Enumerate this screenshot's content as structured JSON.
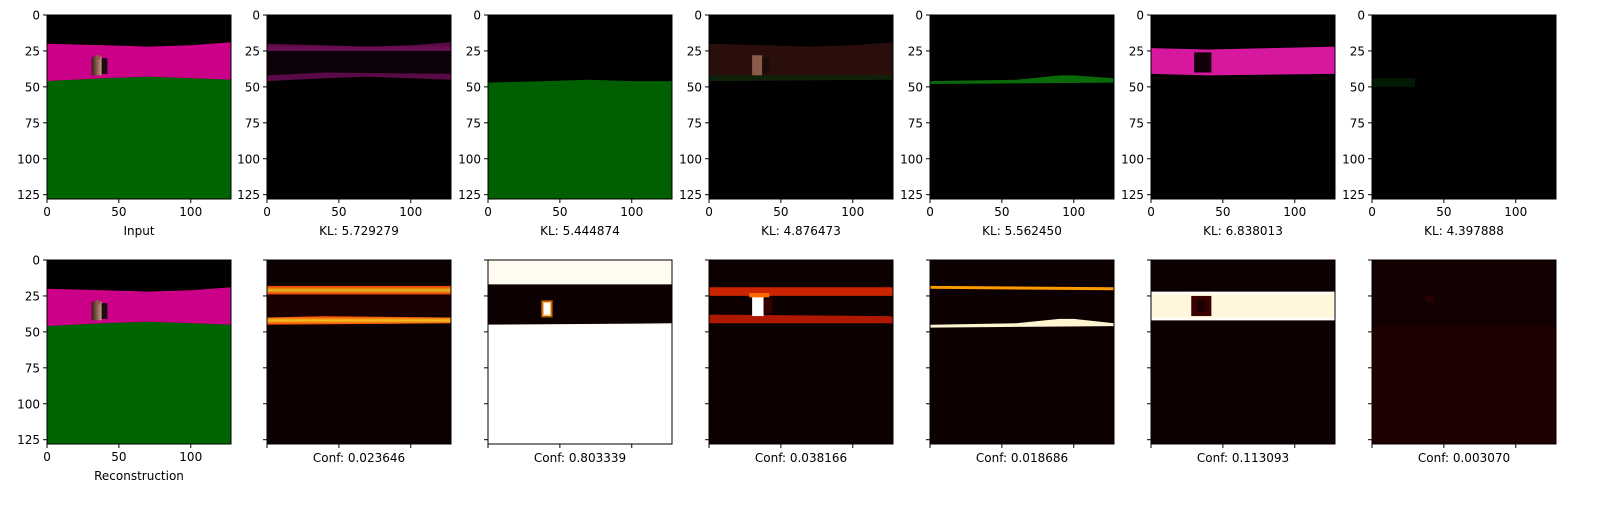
{
  "chart_data": {
    "type": "heatmap",
    "image_size": 128,
    "ticks": [
      0,
      25,
      50,
      75,
      100,
      125
    ],
    "x_ticks": [
      0,
      50,
      100
    ],
    "colors": {
      "sky": "#000000",
      "wall": "#cc0088",
      "ground": "#006400",
      "object_dark": "#1a0d0d",
      "object_light": "#b07a6a",
      "heat_low": "#0d0000",
      "heat_high": "#ffffff"
    },
    "top_row": [
      {
        "label": "Input",
        "kind": "scene"
      },
      {
        "label": "KL: 5.729279",
        "kind": "slot1"
      },
      {
        "label": "KL: 5.444874",
        "kind": "slot2"
      },
      {
        "label": "KL: 4.876473",
        "kind": "slot3"
      },
      {
        "label": "KL: 5.562450",
        "kind": "slot4"
      },
      {
        "label": "KL: 6.838013",
        "kind": "slot5"
      },
      {
        "label": "KL: 4.397888",
        "kind": "slot6"
      }
    ],
    "bottom_row": [
      {
        "label": "Reconstruction",
        "kind": "scene"
      },
      {
        "label": "Conf: 0.023646",
        "kind": "mask1"
      },
      {
        "label": "Conf: 0.803339",
        "kind": "mask2"
      },
      {
        "label": "Conf: 0.038166",
        "kind": "mask3"
      },
      {
        "label": "Conf: 0.018686",
        "kind": "mask4"
      },
      {
        "label": "Conf: 0.113093",
        "kind": "mask5"
      },
      {
        "label": "Conf: 0.003070",
        "kind": "mask6"
      }
    ]
  }
}
